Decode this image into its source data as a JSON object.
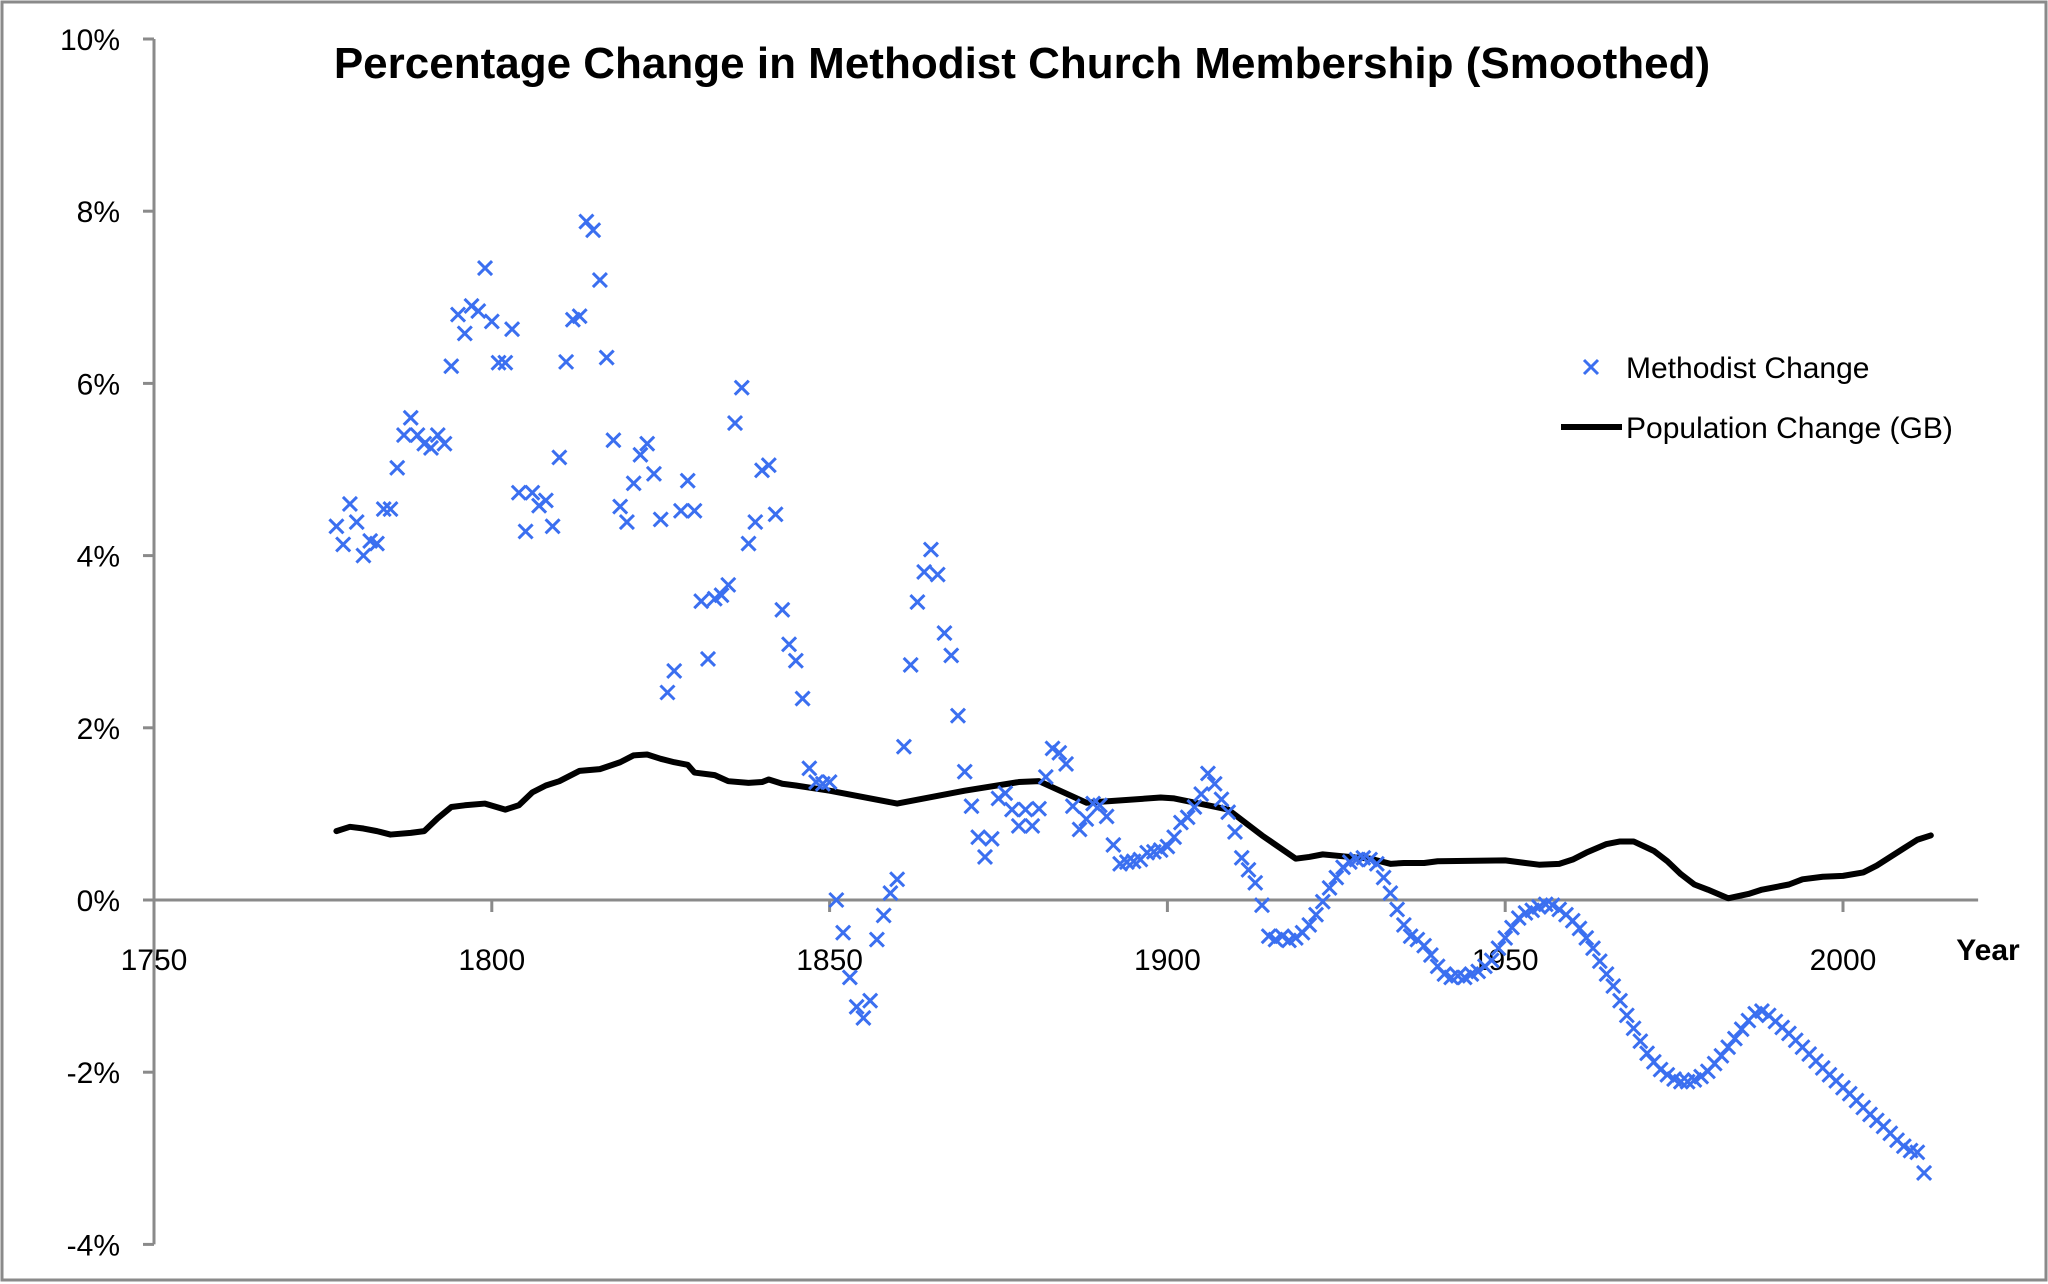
{
  "chart_data": {
    "type": "scatter",
    "title": "Percentage Change in Methodist Church Membership (Smoothed)",
    "xlabel": "Year",
    "ylabel": "",
    "xlim": [
      1750,
      2020
    ],
    "ylim": [
      -4,
      10
    ],
    "x_ticks": [
      "1750",
      "1800",
      "1850",
      "1900",
      "1950",
      "2000"
    ],
    "y_ticks": [
      "-4%",
      "-2%",
      "0%",
      "2%",
      "4%",
      "6%",
      "8%",
      "10%"
    ],
    "grid": false,
    "legend_position": "right",
    "series": [
      {
        "name": "Methodist Change",
        "kind": "scatter",
        "marker": "x",
        "color": "#3b6ff0",
        "points": [
          [
            1777,
            4.34
          ],
          [
            1778,
            4.13
          ],
          [
            1779,
            4.6
          ],
          [
            1780,
            4.39
          ],
          [
            1781,
            4.0
          ],
          [
            1782,
            4.17
          ],
          [
            1783,
            4.14
          ],
          [
            1784,
            4.54
          ],
          [
            1785,
            4.54
          ],
          [
            1786,
            5.02
          ],
          [
            1787,
            5.4
          ],
          [
            1788,
            5.6
          ],
          [
            1789,
            5.4
          ],
          [
            1790,
            5.3
          ],
          [
            1791,
            5.25
          ],
          [
            1792,
            5.4
          ],
          [
            1793,
            5.3
          ],
          [
            1794,
            6.2
          ],
          [
            1795,
            6.8
          ],
          [
            1796,
            6.58
          ],
          [
            1797,
            6.9
          ],
          [
            1798,
            6.84
          ],
          [
            1799,
            7.34
          ],
          [
            1800,
            6.72
          ],
          [
            1801,
            6.24
          ],
          [
            1802,
            6.24
          ],
          [
            1803,
            6.63
          ],
          [
            1804,
            4.73
          ],
          [
            1805,
            4.28
          ],
          [
            1806,
            4.73
          ],
          [
            1807,
            4.58
          ],
          [
            1808,
            4.64
          ],
          [
            1809,
            4.34
          ],
          [
            1810,
            5.14
          ],
          [
            1811,
            6.25
          ],
          [
            1812,
            6.74
          ],
          [
            1813,
            6.78
          ],
          [
            1814,
            7.88
          ],
          [
            1815,
            7.78
          ],
          [
            1816,
            7.2
          ],
          [
            1817,
            6.3
          ],
          [
            1818,
            5.34
          ],
          [
            1819,
            4.57
          ],
          [
            1820,
            4.39
          ],
          [
            1821,
            4.84
          ],
          [
            1822,
            5.17
          ],
          [
            1823,
            5.3
          ],
          [
            1824,
            4.95
          ],
          [
            1825,
            4.42
          ],
          [
            1826,
            2.41
          ],
          [
            1827,
            2.66
          ],
          [
            1828,
            4.52
          ],
          [
            1829,
            4.87
          ],
          [
            1830,
            4.52
          ],
          [
            1831,
            3.47
          ],
          [
            1832,
            2.8
          ],
          [
            1833,
            3.5
          ],
          [
            1834,
            3.54
          ],
          [
            1835,
            3.66
          ],
          [
            1836,
            5.54
          ],
          [
            1837,
            5.95
          ],
          [
            1838,
            4.14
          ],
          [
            1839,
            4.39
          ],
          [
            1840,
            4.99
          ],
          [
            1841,
            5.05
          ],
          [
            1842,
            4.48
          ],
          [
            1843,
            3.37
          ],
          [
            1844,
            2.97
          ],
          [
            1845,
            2.78
          ],
          [
            1846,
            2.34
          ],
          [
            1847,
            1.53
          ],
          [
            1848,
            1.37
          ],
          [
            1849,
            1.35
          ],
          [
            1850,
            1.37
          ],
          [
            1851,
            0.0
          ],
          [
            1852,
            -0.38
          ],
          [
            1853,
            -0.9
          ],
          [
            1854,
            -1.24
          ],
          [
            1855,
            -1.37
          ],
          [
            1856,
            -1.17
          ],
          [
            1857,
            -0.46
          ],
          [
            1858,
            -0.18
          ],
          [
            1859,
            0.08
          ],
          [
            1860,
            0.24
          ],
          [
            1861,
            1.78
          ],
          [
            1862,
            2.73
          ],
          [
            1863,
            3.46
          ],
          [
            1864,
            3.81
          ],
          [
            1865,
            4.07
          ],
          [
            1866,
            3.78
          ],
          [
            1867,
            3.1
          ],
          [
            1868,
            2.84
          ],
          [
            1869,
            2.14
          ],
          [
            1870,
            1.49
          ],
          [
            1871,
            1.09
          ],
          [
            1872,
            0.73
          ],
          [
            1873,
            0.5
          ],
          [
            1874,
            0.71
          ],
          [
            1875,
            1.18
          ],
          [
            1876,
            1.24
          ],
          [
            1877,
            1.05
          ],
          [
            1878,
            0.86
          ],
          [
            1879,
            1.05
          ],
          [
            1880,
            0.86
          ],
          [
            1881,
            1.06
          ],
          [
            1882,
            1.43
          ],
          [
            1883,
            1.76
          ],
          [
            1884,
            1.71
          ],
          [
            1885,
            1.58
          ],
          [
            1886,
            1.09
          ],
          [
            1887,
            0.82
          ],
          [
            1888,
            0.94
          ],
          [
            1889,
            1.12
          ],
          [
            1890,
            1.1
          ],
          [
            1891,
            0.97
          ],
          [
            1892,
            0.64
          ],
          [
            1893,
            0.42
          ],
          [
            1894,
            0.44
          ],
          [
            1895,
            0.45
          ],
          [
            1896,
            0.47
          ],
          [
            1897,
            0.55
          ],
          [
            1898,
            0.56
          ],
          [
            1899,
            0.58
          ],
          [
            1900,
            0.62
          ],
          [
            1901,
            0.73
          ],
          [
            1902,
            0.9
          ],
          [
            1903,
            0.96
          ],
          [
            1904,
            1.08
          ],
          [
            1905,
            1.23
          ],
          [
            1906,
            1.47
          ],
          [
            1907,
            1.35
          ],
          [
            1908,
            1.17
          ],
          [
            1909,
            1.02
          ],
          [
            1910,
            0.79
          ],
          [
            1911,
            0.49
          ],
          [
            1912,
            0.35
          ],
          [
            1913,
            0.2
          ],
          [
            1914,
            -0.06
          ],
          [
            1915,
            -0.42
          ],
          [
            1916,
            -0.46
          ],
          [
            1917,
            -0.42
          ],
          [
            1918,
            -0.47
          ],
          [
            1919,
            -0.44
          ],
          [
            1920,
            -0.38
          ],
          [
            1921,
            -0.29
          ],
          [
            1922,
            -0.17
          ],
          [
            1923,
            -0.02
          ],
          [
            1924,
            0.14
          ],
          [
            1925,
            0.26
          ],
          [
            1926,
            0.38
          ],
          [
            1927,
            0.44
          ],
          [
            1928,
            0.47
          ],
          [
            1929,
            0.49
          ],
          [
            1930,
            0.47
          ],
          [
            1931,
            0.42
          ],
          [
            1932,
            0.26
          ],
          [
            1933,
            0.08
          ],
          [
            1934,
            -0.11
          ],
          [
            1935,
            -0.29
          ],
          [
            1936,
            -0.42
          ],
          [
            1937,
            -0.46
          ],
          [
            1938,
            -0.53
          ],
          [
            1939,
            -0.64
          ],
          [
            1940,
            -0.77
          ],
          [
            1941,
            -0.86
          ],
          [
            1942,
            -0.9
          ],
          [
            1943,
            -0.88
          ],
          [
            1944,
            -0.9
          ],
          [
            1945,
            -0.86
          ],
          [
            1946,
            -0.83
          ],
          [
            1947,
            -0.77
          ],
          [
            1948,
            -0.7
          ],
          [
            1949,
            -0.56
          ],
          [
            1950,
            -0.44
          ],
          [
            1951,
            -0.32
          ],
          [
            1952,
            -0.21
          ],
          [
            1953,
            -0.15
          ],
          [
            1954,
            -0.12
          ],
          [
            1955,
            -0.08
          ],
          [
            1956,
            -0.05
          ],
          [
            1957,
            -0.06
          ],
          [
            1958,
            -0.11
          ],
          [
            1959,
            -0.17
          ],
          [
            1960,
            -0.24
          ],
          [
            1961,
            -0.33
          ],
          [
            1962,
            -0.44
          ],
          [
            1963,
            -0.56
          ],
          [
            1964,
            -0.71
          ],
          [
            1965,
            -0.86
          ],
          [
            1966,
            -1.0
          ],
          [
            1967,
            -1.17
          ],
          [
            1968,
            -1.34
          ],
          [
            1969,
            -1.49
          ],
          [
            1970,
            -1.64
          ],
          [
            1971,
            -1.78
          ],
          [
            1972,
            -1.88
          ],
          [
            1973,
            -1.97
          ],
          [
            1974,
            -2.03
          ],
          [
            1975,
            -2.08
          ],
          [
            1976,
            -2.11
          ],
          [
            1977,
            -2.11
          ],
          [
            1978,
            -2.09
          ],
          [
            1979,
            -2.05
          ],
          [
            1980,
            -1.99
          ],
          [
            1981,
            -1.9
          ],
          [
            1982,
            -1.81
          ],
          [
            1983,
            -1.71
          ],
          [
            1984,
            -1.61
          ],
          [
            1985,
            -1.5
          ],
          [
            1986,
            -1.4
          ],
          [
            1987,
            -1.32
          ],
          [
            1988,
            -1.29
          ],
          [
            1989,
            -1.34
          ],
          [
            1990,
            -1.41
          ],
          [
            1991,
            -1.48
          ],
          [
            1992,
            -1.55
          ],
          [
            1993,
            -1.63
          ],
          [
            1994,
            -1.71
          ],
          [
            1995,
            -1.79
          ],
          [
            1996,
            -1.87
          ],
          [
            1997,
            -1.95
          ],
          [
            1998,
            -2.03
          ],
          [
            1999,
            -2.1
          ],
          [
            2000,
            -2.18
          ],
          [
            2001,
            -2.25
          ],
          [
            2002,
            -2.33
          ],
          [
            2003,
            -2.41
          ],
          [
            2004,
            -2.49
          ],
          [
            2005,
            -2.56
          ],
          [
            2006,
            -2.63
          ],
          [
            2007,
            -2.71
          ],
          [
            2008,
            -2.79
          ],
          [
            2009,
            -2.86
          ],
          [
            2010,
            -2.91
          ],
          [
            2011,
            -2.93
          ],
          [
            2012,
            -3.17
          ]
        ]
      },
      {
        "name": "Population Change (GB)",
        "kind": "line",
        "color": "#000000",
        "points": [
          [
            1777,
            0.8
          ],
          [
            1779,
            0.85
          ],
          [
            1781,
            0.83
          ],
          [
            1783,
            0.8
          ],
          [
            1785,
            0.76
          ],
          [
            1788,
            0.78
          ],
          [
            1790,
            0.8
          ],
          [
            1792,
            0.95
          ],
          [
            1794,
            1.08
          ],
          [
            1796,
            1.1
          ],
          [
            1799,
            1.12
          ],
          [
            1802,
            1.05
          ],
          [
            1804,
            1.1
          ],
          [
            1806,
            1.25
          ],
          [
            1808,
            1.33
          ],
          [
            1810,
            1.38
          ],
          [
            1813,
            1.5
          ],
          [
            1816,
            1.52
          ],
          [
            1819,
            1.6
          ],
          [
            1821,
            1.68
          ],
          [
            1823,
            1.69
          ],
          [
            1825,
            1.64
          ],
          [
            1827,
            1.6
          ],
          [
            1829,
            1.57
          ],
          [
            1830,
            1.48
          ],
          [
            1833,
            1.45
          ],
          [
            1835,
            1.38
          ],
          [
            1838,
            1.36
          ],
          [
            1840,
            1.37
          ],
          [
            1841,
            1.4
          ],
          [
            1843,
            1.35
          ],
          [
            1845,
            1.33
          ],
          [
            1850,
            1.27
          ],
          [
            1860,
            1.12
          ],
          [
            1870,
            1.27
          ],
          [
            1878,
            1.37
          ],
          [
            1881,
            1.38
          ],
          [
            1888,
            1.13
          ],
          [
            1899,
            1.19
          ],
          [
            1901,
            1.18
          ],
          [
            1906,
            1.1
          ],
          [
            1909,
            1.05
          ],
          [
            1914,
            0.75
          ],
          [
            1919,
            0.48
          ],
          [
            1921,
            0.5
          ],
          [
            1923,
            0.53
          ],
          [
            1927,
            0.5
          ],
          [
            1930,
            0.48
          ],
          [
            1933,
            0.42
          ],
          [
            1935,
            0.43
          ],
          [
            1938,
            0.43
          ],
          [
            1940,
            0.45
          ],
          [
            1950,
            0.46
          ],
          [
            1953,
            0.43
          ],
          [
            1955,
            0.41
          ],
          [
            1958,
            0.42
          ],
          [
            1960,
            0.47
          ],
          [
            1962,
            0.55
          ],
          [
            1965,
            0.65
          ],
          [
            1967,
            0.68
          ],
          [
            1969,
            0.68
          ],
          [
            1972,
            0.57
          ],
          [
            1974,
            0.45
          ],
          [
            1976,
            0.3
          ],
          [
            1978,
            0.18
          ],
          [
            1980,
            0.12
          ],
          [
            1983,
            0.02
          ],
          [
            1986,
            0.07
          ],
          [
            1988,
            0.12
          ],
          [
            1992,
            0.18
          ],
          [
            1994,
            0.24
          ],
          [
            1997,
            0.27
          ],
          [
            2000,
            0.28
          ],
          [
            2003,
            0.32
          ],
          [
            2005,
            0.4
          ],
          [
            2007,
            0.5
          ],
          [
            2009,
            0.6
          ],
          [
            2011,
            0.7
          ],
          [
            2013,
            0.75
          ]
        ]
      }
    ]
  }
}
